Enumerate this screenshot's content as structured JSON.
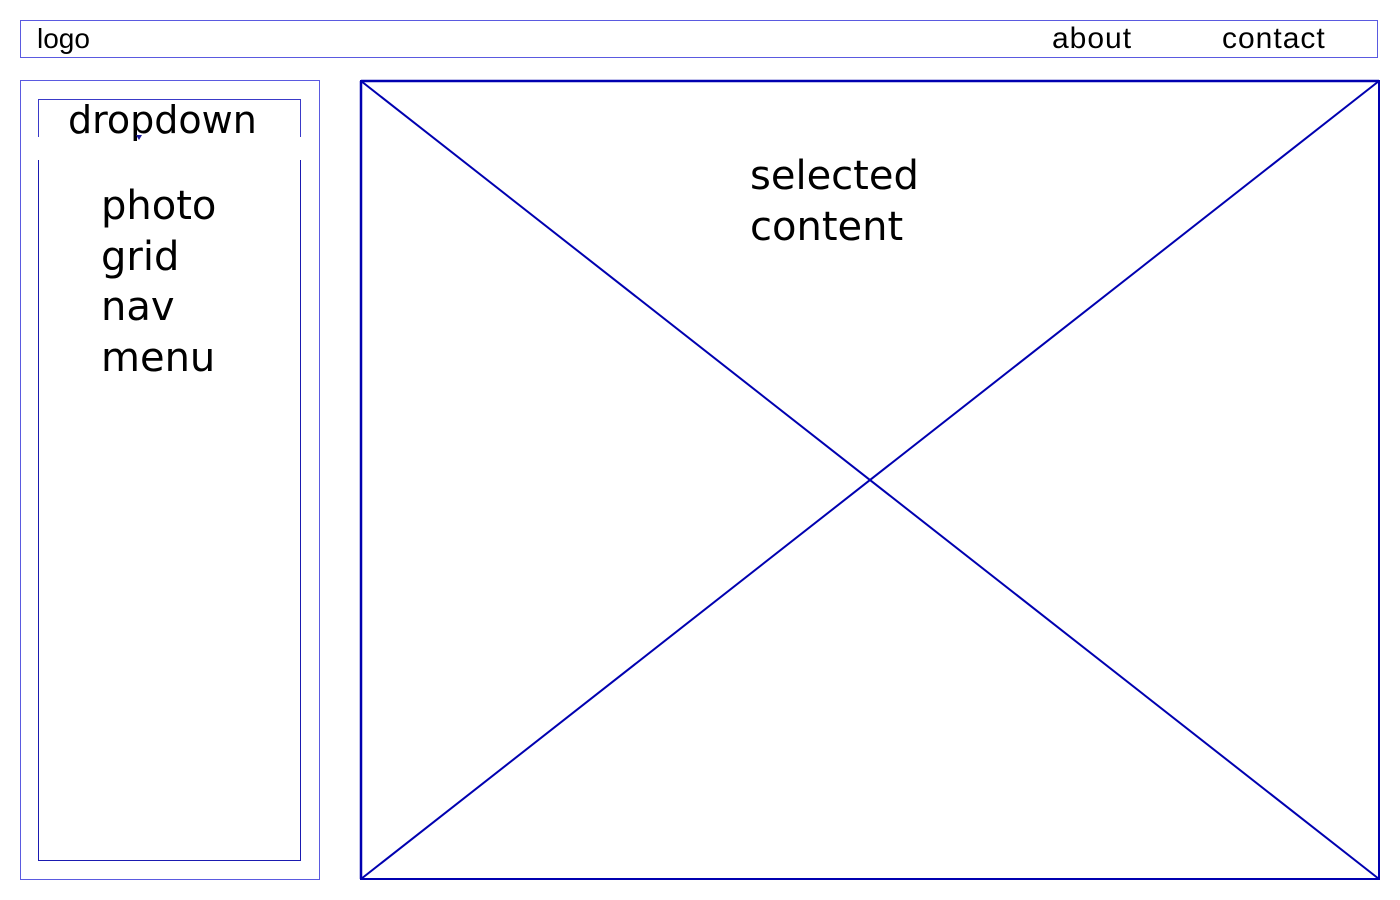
{
  "header": {
    "logo": "logo",
    "nav": [
      {
        "label": "about"
      },
      {
        "label": "contact"
      }
    ]
  },
  "sidebar": {
    "dropdown_label": "dropdown",
    "menu_lines": [
      "photo",
      "grid",
      "nav",
      "menu"
    ]
  },
  "main": {
    "placeholder_lines": [
      "selected",
      "content"
    ]
  },
  "colors": {
    "wireframe_line": "#0000b0",
    "thin_border": "#5a5ae0"
  },
  "icons": {
    "dropdown_caret": "chevron-down-icon"
  }
}
